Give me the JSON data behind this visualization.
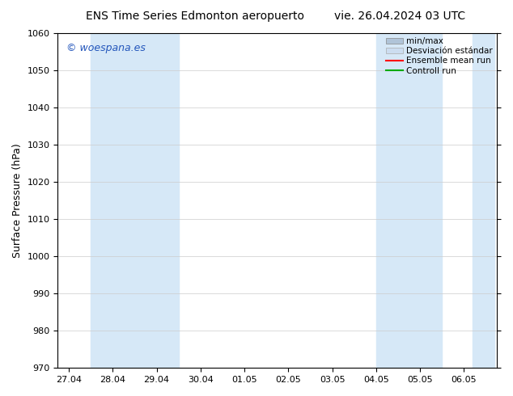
{
  "title_left": "ENS Time Series Edmonton aeropuerto",
  "title_right": "vie. 26.04.2024 03 UTC",
  "ylabel": "Surface Pressure (hPa)",
  "ylim": [
    970,
    1060
  ],
  "yticks": [
    970,
    980,
    990,
    1000,
    1010,
    1020,
    1030,
    1040,
    1050,
    1060
  ],
  "bg_color": "#ffffff",
  "plot_bg_color": "#ffffff",
  "watermark": "© woespana.es",
  "watermark_color": "#2255bb",
  "x_labels": [
    "27.04",
    "28.04",
    "29.04",
    "30.04",
    "01.05",
    "02.05",
    "03.05",
    "04.05",
    "05.05",
    "06.05"
  ],
  "x_positions": [
    0,
    1,
    2,
    3,
    4,
    5,
    6,
    7,
    8,
    9
  ],
  "shaded_color": "#d6e8f7",
  "legend_minmax_color": "#b0c4d8",
  "legend_std_color": "#ccddf0",
  "legend_mean_color": "#ff0000",
  "legend_ctrl_color": "#00aa00",
  "title_fontsize": 10,
  "axis_label_fontsize": 9,
  "tick_fontsize": 8,
  "legend_fontsize": 7.5,
  "watermark_fontsize": 9,
  "band1_xstart": 0.5,
  "band1_xend": 2.5,
  "band2_xstart": 7.0,
  "band2_xend": 8.5,
  "band3_xstart": 9.2,
  "band3_xend": 9.7,
  "xlim_left": -0.25,
  "xlim_right": 9.75
}
